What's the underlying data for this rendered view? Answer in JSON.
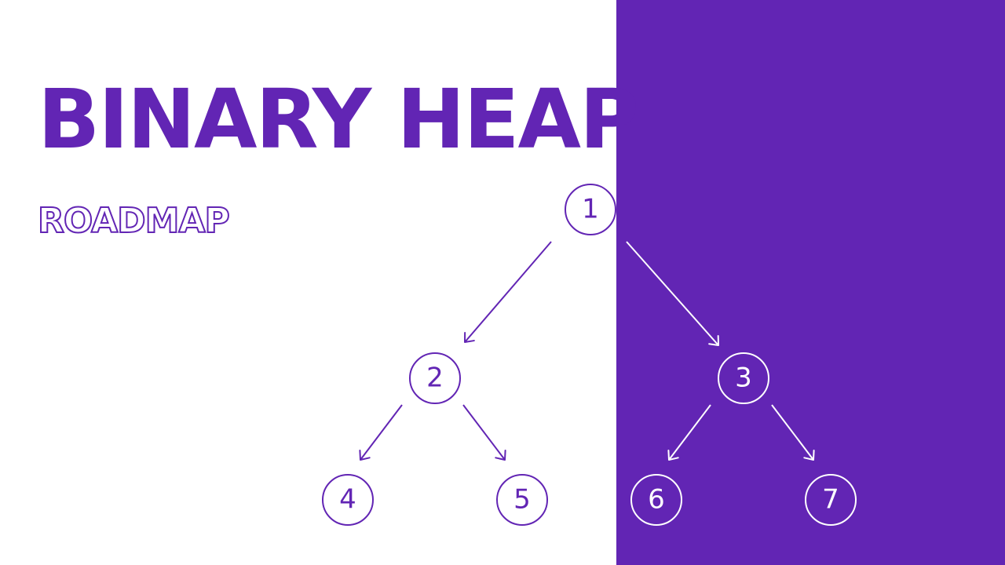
{
  "title": "BINARY HEAP",
  "subtitle": "ROADMAP",
  "colors": {
    "accent": "#6225b4",
    "background": "#ffffff",
    "on_accent": "#ffffff"
  },
  "heap": {
    "nodes": [
      {
        "id": "1",
        "label": "1"
      },
      {
        "id": "2",
        "label": "2"
      },
      {
        "id": "3",
        "label": "3"
      },
      {
        "id": "4",
        "label": "4"
      },
      {
        "id": "5",
        "label": "5"
      },
      {
        "id": "6",
        "label": "6"
      },
      {
        "id": "7",
        "label": "7"
      }
    ],
    "edges": [
      {
        "from": "1",
        "to": "2"
      },
      {
        "from": "1",
        "to": "3"
      },
      {
        "from": "2",
        "to": "4"
      },
      {
        "from": "2",
        "to": "5"
      },
      {
        "from": "3",
        "to": "6"
      },
      {
        "from": "3",
        "to": "7"
      }
    ]
  }
}
